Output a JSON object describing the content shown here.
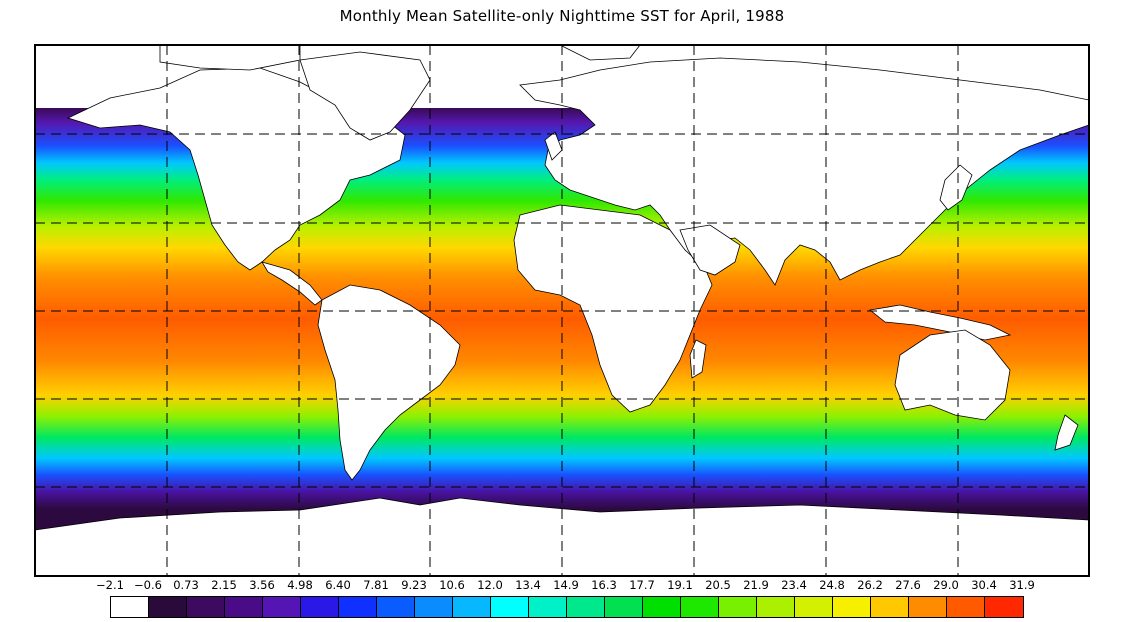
{
  "title": "Monthly Mean Satellite-only Nighttime SST for April, 1988",
  "legend": {
    "tick_labels": [
      "−2.1",
      "−0.6",
      "0.73",
      "2.15",
      "3.56",
      "4.98",
      "6.40",
      "7.81",
      "9.23",
      "10.6",
      "12.0",
      "13.4",
      "14.9",
      "16.3",
      "17.7",
      "19.1",
      "20.5",
      "21.9",
      "23.4",
      "24.8",
      "26.2",
      "27.6",
      "29.0",
      "30.4",
      "31.9"
    ],
    "colors": [
      "#ffffff",
      "#2a0a3a",
      "#3c0a5e",
      "#4a0c86",
      "#5514b4",
      "#2a18e6",
      "#1030ff",
      "#0a5cff",
      "#0a8cff",
      "#08b8ff",
      "#00ffff",
      "#00f0c8",
      "#00e88c",
      "#00e050",
      "#00e000",
      "#1ee800",
      "#78f000",
      "#aaf000",
      "#d2f000",
      "#f6f000",
      "#ffc800",
      "#ff8c00",
      "#ff5a00",
      "#ff2800"
    ]
  },
  "map": {
    "projection": "equirectangular",
    "lon_range": [
      0,
      360
    ],
    "lat_range": [
      -90,
      90
    ],
    "grid": "dashed"
  }
}
